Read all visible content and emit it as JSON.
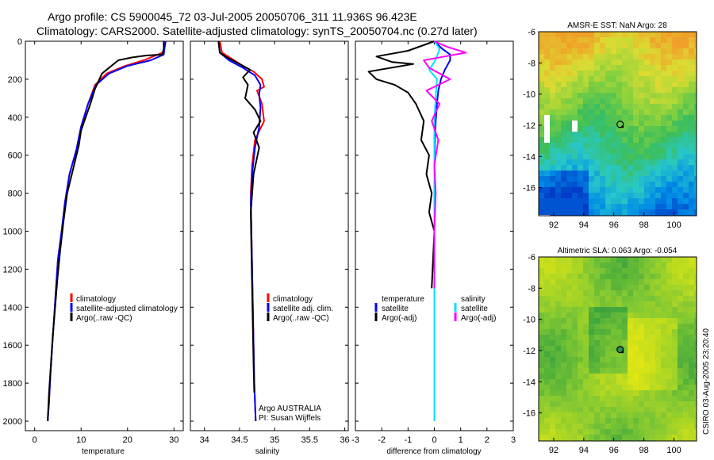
{
  "title": {
    "line1": "Argo profile: CS 5900045_72 03-Jul-2005 20050706_311 11.936S 96.423E",
    "line2": "Climatology: CARS2000. Satellite-adjusted climatology: synTS_20050704.nc (0.27d later)"
  },
  "side_label": "CSIRO 03-Aug-2005 23:20:40",
  "colors": {
    "climatology": "#ff0000",
    "satellite": "#0000ff",
    "argo": "#000000",
    "salinity": "#ff00ff",
    "sat_salinity": "#00e0ff"
  },
  "chart_data": [
    {
      "type": "line",
      "name": "temperature-profile",
      "xlabel": "temperature",
      "ylabel": "",
      "xlim": [
        -2,
        32
      ],
      "ylim": [
        2050,
        0
      ],
      "xticks": [
        0,
        10,
        20,
        30
      ],
      "yticks": [
        0,
        200,
        400,
        600,
        800,
        1000,
        1200,
        1400,
        1600,
        1800,
        2000
      ],
      "legend": {
        "position": "lower-right",
        "labels": [
          "climatology",
          "satellite-adjusted climatology",
          "Argo(..raw -QC)"
        ]
      },
      "series": [
        {
          "name": "climatology",
          "color": "#ff0000",
          "x": [
            28.2,
            28.0,
            27.5,
            23.5,
            19.5,
            15.5,
            13.0,
            11.5,
            10.0,
            9.0,
            7.5,
            6.5,
            5.8,
            5.0,
            4.6,
            4.2,
            3.8,
            3.4,
            3.1,
            2.8
          ],
          "y": [
            0,
            30,
            60,
            100,
            130,
            170,
            230,
            330,
            450,
            570,
            700,
            850,
            1000,
            1150,
            1300,
            1450,
            1600,
            1750,
            1900,
            2000
          ]
        },
        {
          "name": "satellite-adjusted climatology",
          "color": "#0000ff",
          "x": [
            28.2,
            28.0,
            27.8,
            25.0,
            20.0,
            16.0,
            13.2,
            11.5,
            10.0,
            9.0,
            7.5,
            6.5,
            5.8,
            5.0,
            4.6,
            4.2,
            3.8,
            3.4,
            3.1,
            2.8
          ],
          "y": [
            0,
            30,
            70,
            100,
            130,
            170,
            230,
            330,
            450,
            570,
            700,
            850,
            1000,
            1150,
            1300,
            1450,
            1600,
            1750,
            1900,
            2000
          ]
        },
        {
          "name": "Argo(..raw -QC)",
          "color": "#000000",
          "x": [
            27.8,
            27.8,
            27.5,
            24.0,
            21.0,
            18.0,
            14.5,
            13.0,
            12.0,
            10.0,
            9.5,
            8.5,
            7.0,
            6.2,
            5.5,
            4.9,
            4.4,
            3.9,
            3.5,
            3.1,
            2.8
          ],
          "y": [
            0,
            40,
            70,
            75,
            85,
            100,
            170,
            250,
            330,
            470,
            550,
            650,
            800,
            950,
            1100,
            1250,
            1400,
            1550,
            1700,
            1850,
            2000
          ]
        }
      ]
    },
    {
      "type": "line",
      "name": "salinity-profile",
      "xlabel": "salinity",
      "ylabel": "",
      "xlim": [
        33.8,
        36.05
      ],
      "ylim": [
        2050,
        0
      ],
      "xticks": [
        34,
        34.5,
        35,
        35.5,
        36
      ],
      "legend": {
        "position": "lower-right",
        "labels": [
          "climatology",
          "satellite adj. clim.",
          "Argo(..raw -QC)"
        ]
      },
      "annotation": {
        "line1": "Argo AUSTRALIA",
        "line2": "PI: Susan Wijffels"
      },
      "series": [
        {
          "name": "climatology",
          "color": "#ff0000",
          "x": [
            34.22,
            34.25,
            34.38,
            34.55,
            34.7,
            34.82,
            34.85,
            34.75,
            34.82,
            34.85,
            34.72,
            34.68,
            34.66,
            34.67,
            34.68,
            34.69,
            34.7,
            34.71,
            34.72,
            34.73
          ],
          "y": [
            0,
            60,
            90,
            130,
            160,
            200,
            240,
            260,
            330,
            420,
            520,
            650,
            800,
            1000,
            1200,
            1400,
            1600,
            1800,
            1900,
            2000
          ]
        },
        {
          "name": "satellite adj. clim.",
          "color": "#0000ff",
          "x": [
            34.2,
            34.22,
            34.35,
            34.55,
            34.72,
            34.8,
            34.78,
            34.8,
            34.78,
            34.72,
            34.68,
            34.66,
            34.67,
            34.68,
            34.69,
            34.7,
            34.71,
            34.72,
            34.73
          ],
          "y": [
            0,
            60,
            100,
            140,
            180,
            230,
            280,
            350,
            450,
            560,
            700,
            850,
            1000,
            1200,
            1400,
            1600,
            1800,
            1900,
            2000
          ]
        },
        {
          "name": "Argo(..raw -QC)",
          "color": "#000000",
          "x": [
            34.2,
            34.22,
            34.3,
            34.5,
            34.65,
            34.55,
            34.62,
            34.58,
            34.72,
            34.8,
            34.7,
            34.78,
            34.7,
            34.66,
            34.67,
            34.68,
            34.69,
            34.7,
            34.71
          ],
          "y": [
            0,
            60,
            80,
            120,
            150,
            190,
            230,
            300,
            360,
            420,
            480,
            560,
            700,
            900,
            1100,
            1300,
            1500,
            1700,
            1850
          ]
        }
      ]
    },
    {
      "type": "line",
      "name": "difference-profile",
      "xlabel": "difference from climatology",
      "ylabel": "",
      "xlim": [
        -3,
        3
      ],
      "ylim": [
        2050,
        0
      ],
      "xticks": [
        -3,
        -2,
        -1,
        0,
        1,
        2,
        3
      ],
      "legend": {
        "position": "lower-center",
        "labels": [
          "temperature",
          "satellite",
          "Argo(-adj)",
          "salinity",
          "satellite",
          "Argo(-adj)"
        ]
      },
      "series": [
        {
          "name": "temperature satellite",
          "color": "#0000ff",
          "x": [
            0.0,
            0.3,
            0.6,
            0.6,
            0.4,
            0.25,
            0.15,
            0.1,
            0.05,
            0.02,
            0.0,
            0.0,
            0.0,
            0.0
          ],
          "y": [
            0,
            40,
            70,
            100,
            150,
            200,
            260,
            330,
            420,
            520,
            650,
            900,
            1400,
            2000
          ]
        },
        {
          "name": "temperature Argo(-adj)",
          "color": "#000000",
          "x": [
            0.0,
            -1.0,
            -2.2,
            -1.6,
            -0.8,
            -2.5,
            -2.2,
            -1.5,
            -1.0,
            -0.7,
            -0.4,
            -0.5,
            -0.2,
            -0.3,
            -0.1,
            -0.2,
            0.0,
            -0.1
          ],
          "y": [
            0,
            50,
            80,
            110,
            120,
            160,
            200,
            230,
            270,
            330,
            420,
            520,
            600,
            700,
            800,
            900,
            1000,
            1300
          ]
        },
        {
          "name": "salinity satellite",
          "color": "#00e0ff",
          "x": [
            0.0,
            0.2,
            0.1,
            0.0,
            -0.2,
            0.1,
            0.05,
            0.0,
            0.0,
            0.0,
            0.0,
            0.0
          ],
          "y": [
            0,
            40,
            80,
            110,
            150,
            200,
            300,
            420,
            600,
            800,
            1200,
            2000
          ]
        },
        {
          "name": "salinity Argo(-adj)",
          "color": "#ff00ff",
          "x": [
            0.0,
            0.5,
            1.2,
            0.4,
            -0.4,
            -0.2,
            0.6,
            -0.3,
            0.2,
            -0.1,
            0.15,
            0.0,
            0.05,
            0.0,
            0.0
          ],
          "y": [
            0,
            30,
            60,
            80,
            100,
            140,
            200,
            260,
            330,
            420,
            520,
            650,
            800,
            1000,
            1300
          ]
        }
      ]
    },
    {
      "type": "heatmap",
      "name": "sst-map",
      "title": "AMSR-E SST: NaN Argo: 28",
      "xlim": [
        91,
        101.5
      ],
      "ylim": [
        -17.8,
        -6
      ],
      "xticks": [
        92,
        94,
        96,
        98,
        100
      ],
      "yticks": [
        -6,
        -8,
        -10,
        -12,
        -14,
        -16
      ],
      "float_position": {
        "lon": 96.42,
        "lat": -11.94
      }
    },
    {
      "type": "heatmap",
      "name": "sla-map",
      "title": "Altimetric SLA: 0.063 Argo: -0.054",
      "xlim": [
        91,
        101.5
      ],
      "ylim": [
        -17.8,
        -6
      ],
      "xticks": [
        92,
        94,
        96,
        98,
        100
      ],
      "yticks": [
        -6,
        -8,
        -10,
        -12,
        -14,
        -16
      ],
      "float_position": {
        "lon": 96.42,
        "lat": -11.94
      }
    }
  ]
}
